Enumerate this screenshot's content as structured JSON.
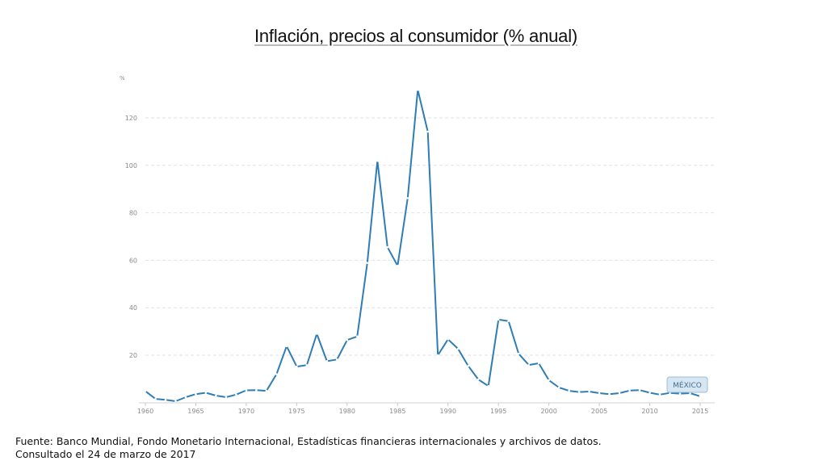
{
  "title": "Inflación, precios al consumidor (% anual)",
  "source_line1": "Fuente: Banco Mundial, Fondo Monetario Internacional, Estadísticas financieras internacionales y archivos de datos.",
  "source_line2": "Consultado el 24 de marzo de 2017",
  "colors": {
    "line": "#2e7db5",
    "grid": "#e2e2e2",
    "tick_text": "#8a8a8a",
    "legend_bg": "#d6e6f3",
    "legend_border": "#9dbcd6"
  },
  "chart_data": {
    "type": "line",
    "title": "Inflación, precios al consumidor (% anual)",
    "ylabel": "%",
    "xlabel": "",
    "ylim": [
      0,
      130
    ],
    "xlim": [
      1960,
      2016
    ],
    "y_ticks": [
      20,
      40,
      60,
      80,
      100,
      120
    ],
    "x_ticks": [
      1960,
      1965,
      1970,
      1975,
      1980,
      1985,
      1990,
      1995,
      2000,
      2005,
      2010,
      2015
    ],
    "grid": "horizontal dashed",
    "legend": "bottom-right",
    "series": [
      {
        "name": "MÉXICO",
        "x": [
          1960,
          1961,
          1962,
          1963,
          1964,
          1965,
          1966,
          1967,
          1968,
          1969,
          1970,
          1971,
          1972,
          1973,
          1974,
          1975,
          1976,
          1977,
          1978,
          1979,
          1980,
          1981,
          1982,
          1983,
          1984,
          1985,
          1986,
          1987,
          1988,
          1989,
          1990,
          1991,
          1992,
          1993,
          1994,
          1995,
          1996,
          1997,
          1998,
          1999,
          2000,
          2001,
          2002,
          2003,
          2004,
          2005,
          2006,
          2007,
          2008,
          2009,
          2010,
          2011,
          2012,
          2013,
          2014,
          2015
        ],
        "values": [
          4.9,
          1.6,
          1.2,
          0.6,
          2.3,
          3.6,
          4.2,
          3.0,
          2.3,
          3.4,
          5.2,
          5.3,
          5.0,
          12.0,
          23.8,
          15.2,
          15.8,
          29.0,
          17.5,
          18.2,
          26.4,
          27.9,
          58.9,
          101.9,
          65.5,
          57.7,
          86.2,
          131.8,
          114.2,
          20.0,
          26.7,
          22.7,
          15.5,
          9.8,
          7.0,
          35.0,
          34.4,
          20.6,
          15.9,
          16.6,
          9.5,
          6.4,
          5.0,
          4.5,
          4.7,
          4.0,
          3.6,
          4.0,
          5.1,
          5.3,
          4.2,
          3.4,
          4.1,
          3.8,
          4.0,
          2.7
        ]
      }
    ]
  }
}
